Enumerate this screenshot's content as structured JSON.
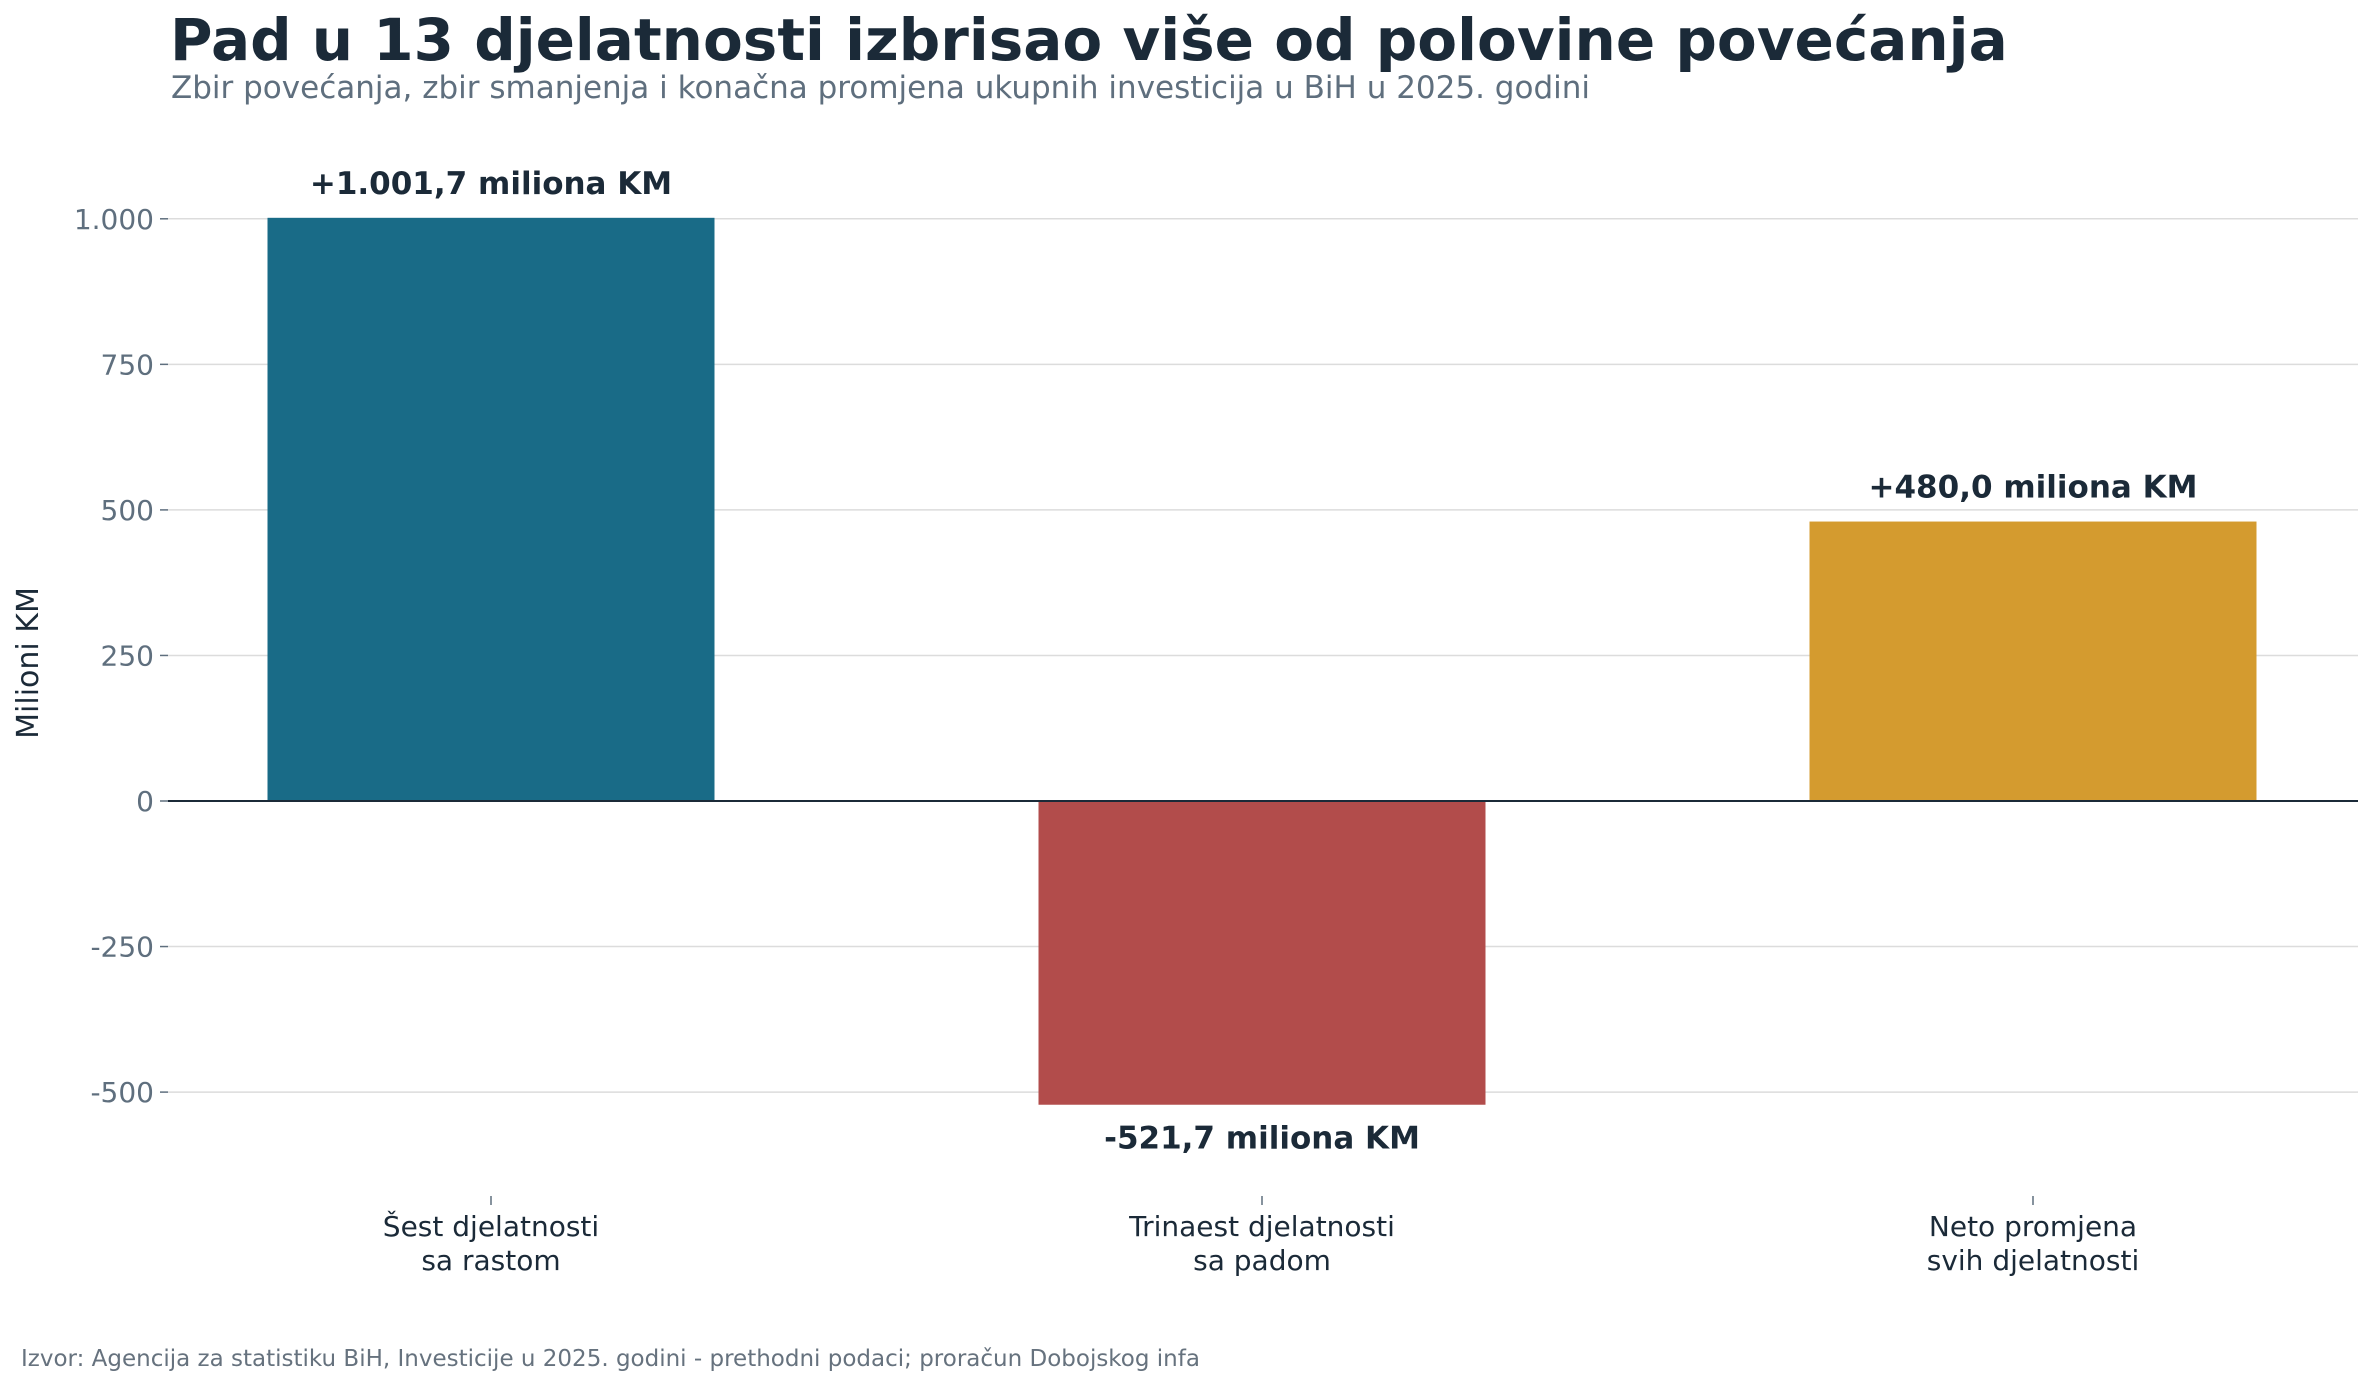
{
  "chart_data": {
    "type": "bar",
    "title": "Pad u 13 djelatnosti izbrisao više od polovine povećanja",
    "subtitle": "Zbir povećanja, zbir smanjenja i konačna promjena ukupnih investicija u BiH u 2025. godini",
    "ylabel": "Milioni KM",
    "xlabel": "",
    "categories": [
      [
        "Šest djelatnosti",
        "sa rastom"
      ],
      [
        "Trinaest djelatnosti",
        "sa padom"
      ],
      [
        "Neto promjena",
        "svih djelatnosti"
      ]
    ],
    "values": [
      1001.7,
      -521.7,
      480.0
    ],
    "data_labels": [
      "+1.001,7 miliona KM",
      "-521,7 miliona KM",
      "+480,0 miliona KM"
    ],
    "colors": [
      "#196b87",
      "#b24c4b",
      "#d49b2f"
    ],
    "ylim": [
      -670,
      1130
    ],
    "yticks": [
      -500,
      -250,
      0,
      250,
      500,
      750,
      1000
    ],
    "ytick_labels": [
      "-500",
      "-250",
      "0",
      "250",
      "500",
      "750",
      "1.000"
    ],
    "grid": "horizontal",
    "legend": "none"
  },
  "source": "Izvor: Agencija za statistiku BiH, Investicije u 2025. godini - prethodni podaci; proračun Dobojskog infa"
}
